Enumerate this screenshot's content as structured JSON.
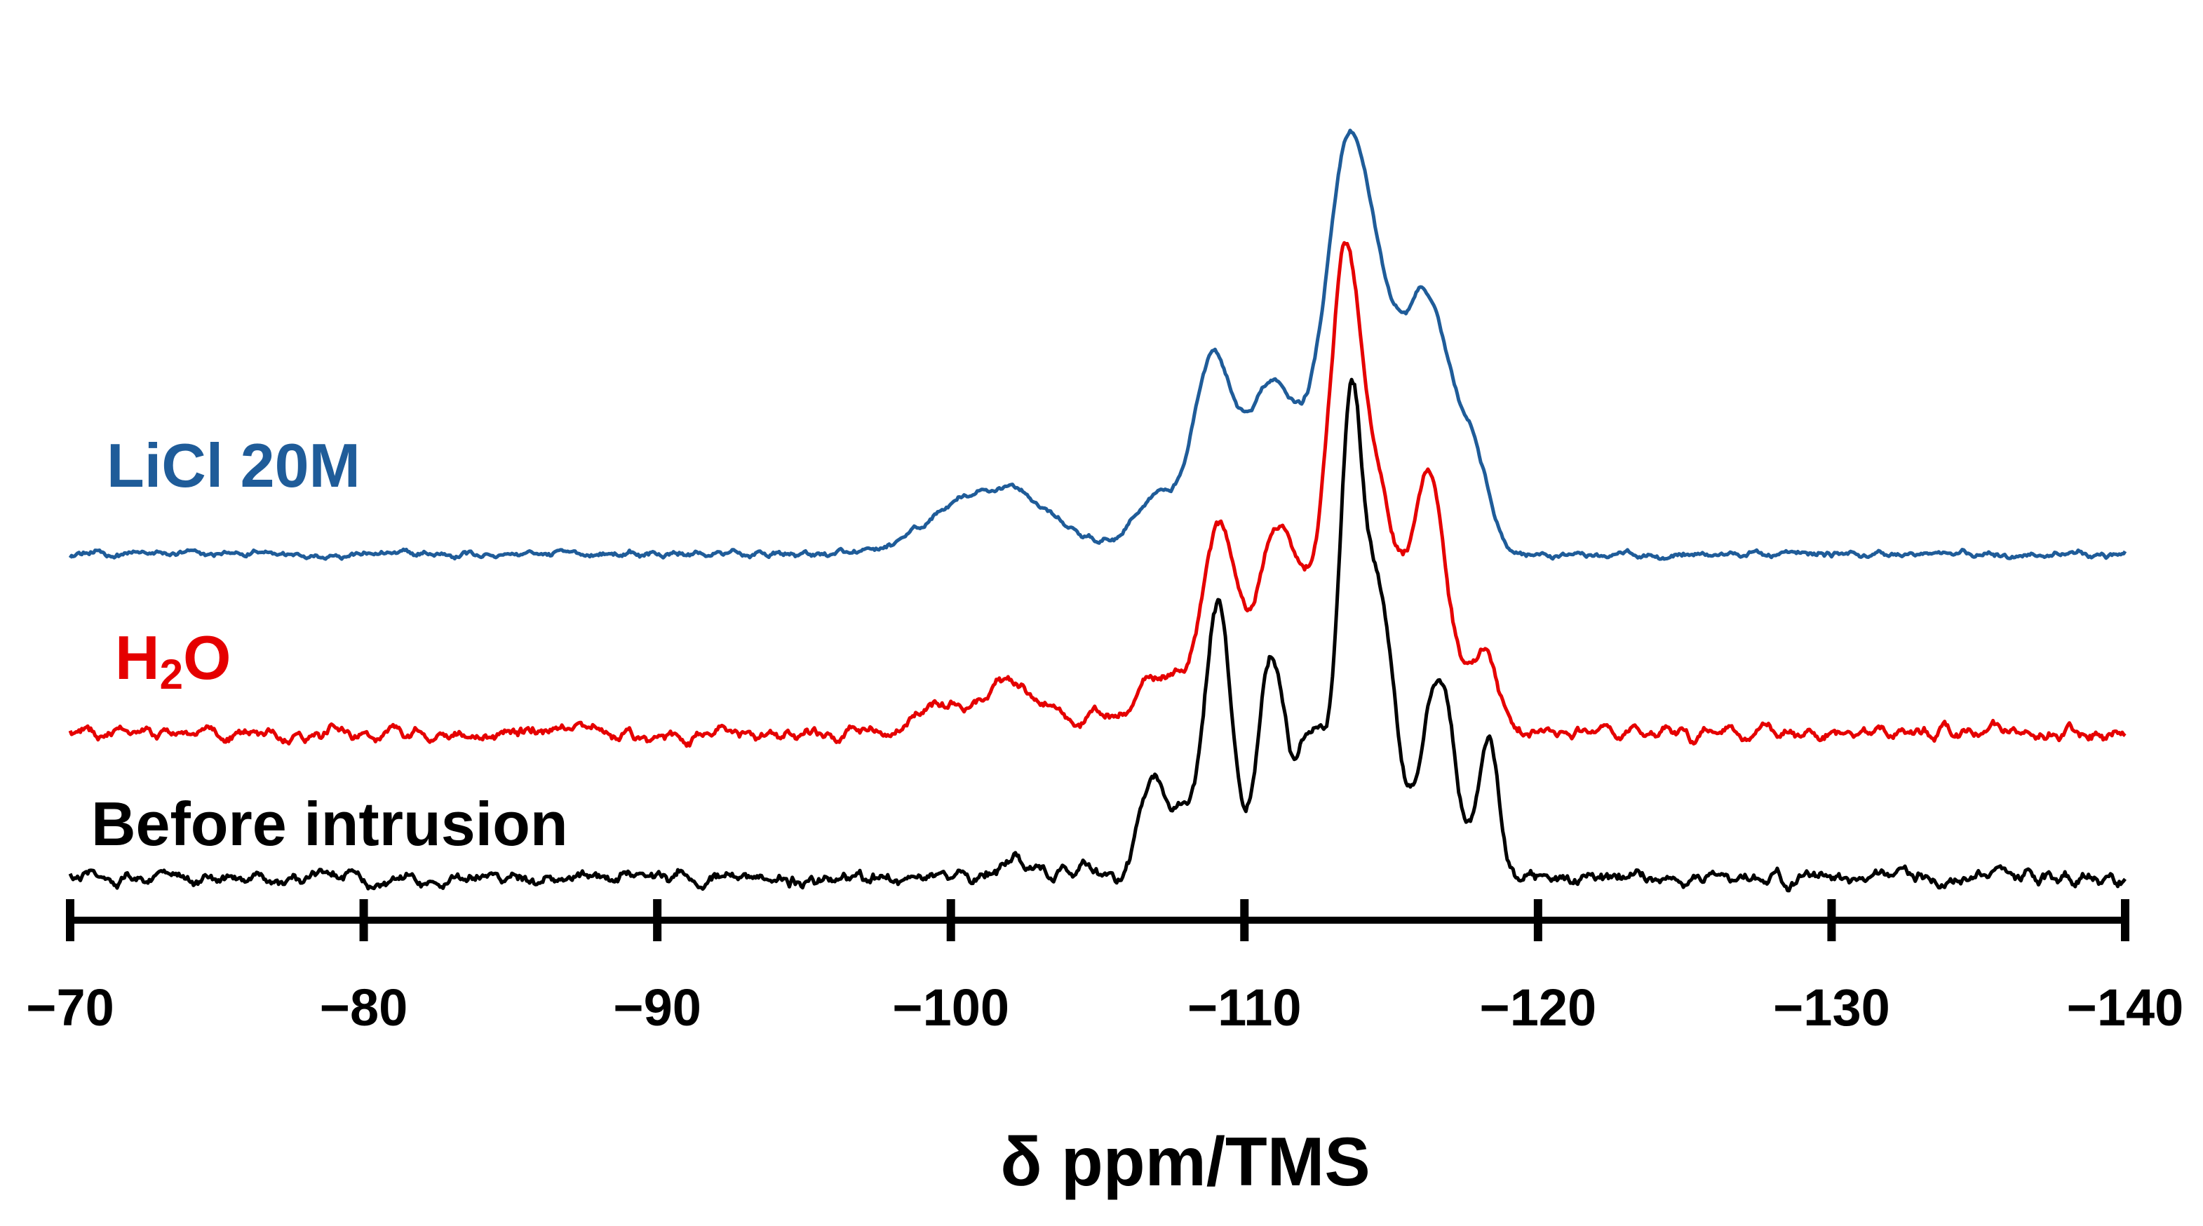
{
  "chart_data": {
    "type": "line",
    "title": "",
    "xlabel": "δ ppm/TMS",
    "ylabel": "",
    "xlim": [
      -70,
      -140
    ],
    "x_reversed": true,
    "ticks": [
      -70,
      -80,
      -90,
      -100,
      -110,
      -120,
      -130,
      -140
    ],
    "tick_labels": [
      "−70",
      "−80",
      "−90",
      "−100",
      "−110",
      "−120",
      "−130",
      "−140"
    ],
    "grid": false,
    "legend": "inline text labels at left",
    "series": [
      {
        "name": "LiCl 20M",
        "color": "#1f5c99",
        "offset": 2.7,
        "label_parts": {
          "main": "LiCl 20M",
          "sub": "",
          "tail": ""
        },
        "peaks": [
          {
            "center": -98.6,
            "height": 0.08,
            "width": 0.7
          },
          {
            "center": -100.2,
            "height": 0.35,
            "width": 0.9
          },
          {
            "center": -102.0,
            "height": 0.42,
            "width": 0.9
          },
          {
            "center": -103.6,
            "height": 0.18,
            "width": 1.1
          },
          {
            "center": -107.0,
            "height": 0.45,
            "width": 0.8
          },
          {
            "center": -108.9,
            "height": 1.45,
            "width": 0.65
          },
          {
            "center": -111.0,
            "height": 1.35,
            "width": 0.9
          },
          {
            "center": -113.4,
            "height": 2.65,
            "width": 0.75
          },
          {
            "center": -114.6,
            "height": 1.5,
            "width": 0.8
          },
          {
            "center": -116.3,
            "height": 1.85,
            "width": 0.75
          },
          {
            "center": -117.8,
            "height": 0.7,
            "width": 0.55
          }
        ],
        "noise": 0.025,
        "baseline_drift": 0.0
      },
      {
        "name": "H₂O",
        "color": "#e50000",
        "offset": 1.5,
        "label_parts": {
          "main": "H",
          "sub": "2",
          "tail": "O"
        },
        "peaks": [
          {
            "center": -99.8,
            "height": 0.25,
            "width": 0.9
          },
          {
            "center": -102.0,
            "height": 0.38,
            "width": 0.7
          },
          {
            "center": -103.5,
            "height": 0.14,
            "width": 0.7
          },
          {
            "center": -105.2,
            "height": 0.12,
            "width": 0.5
          },
          {
            "center": -107.1,
            "height": 0.48,
            "width": 0.7
          },
          {
            "center": -109.1,
            "height": 1.6,
            "width": 0.6
          },
          {
            "center": -111.1,
            "height": 1.55,
            "width": 0.7
          },
          {
            "center": -112.7,
            "height": 0.9,
            "width": 0.7
          },
          {
            "center": -113.5,
            "height": 3.15,
            "width": 0.55
          },
          {
            "center": -114.7,
            "height": 1.55,
            "width": 0.6
          },
          {
            "center": -116.3,
            "height": 1.95,
            "width": 0.6
          },
          {
            "center": -118.1,
            "height": 0.6,
            "width": 0.5
          }
        ],
        "noise": 0.045,
        "baseline_drift": 0.0
      },
      {
        "name": "Before intrusion",
        "color": "#000000",
        "offset": 0.0,
        "label_parts": {
          "main": "Before intrusion",
          "sub": "",
          "tail": ""
        },
        "peaks": [
          {
            "center": -102.0,
            "height": 0.12,
            "width": 0.5
          },
          {
            "center": -104.3,
            "height": 0.07,
            "width": 0.8
          },
          {
            "center": -106.8,
            "height": 0.7,
            "width": 0.4
          },
          {
            "center": -107.8,
            "height": 0.45,
            "width": 0.5
          },
          {
            "center": -109.1,
            "height": 2.15,
            "width": 0.45
          },
          {
            "center": -110.9,
            "height": 1.75,
            "width": 0.45
          },
          {
            "center": -112.3,
            "height": 1.15,
            "width": 0.5
          },
          {
            "center": -113.6,
            "height": 3.35,
            "width": 0.4
          },
          {
            "center": -114.6,
            "height": 2.15,
            "width": 0.55
          },
          {
            "center": -116.6,
            "height": 1.6,
            "width": 0.55
          },
          {
            "center": -118.3,
            "height": 1.05,
            "width": 0.35
          }
        ],
        "noise": 0.05,
        "baseline_drift": 0.0
      }
    ]
  }
}
